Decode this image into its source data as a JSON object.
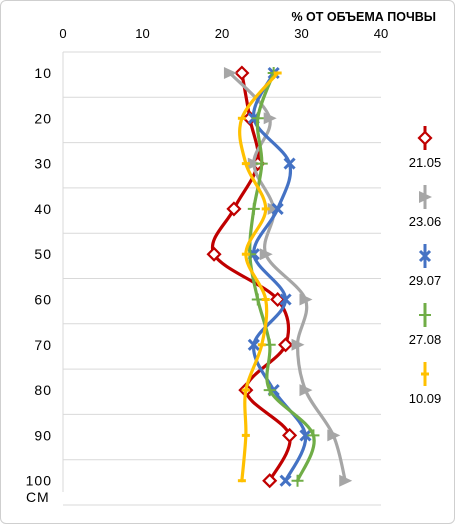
{
  "chart_data": {
    "type": "line",
    "xlabel": "% ОТ ОБЪЕМА ПОЧВЫ",
    "ylabel": "СМ",
    "xlim": [
      0,
      40
    ],
    "x_ticks": [
      "0",
      "10",
      "20",
      "30",
      "40"
    ],
    "y_ticks": [
      "10",
      "20",
      "30",
      "40",
      "50",
      "60",
      "70",
      "80",
      "90",
      "100"
    ],
    "depths": [
      10,
      20,
      30,
      40,
      50,
      60,
      70,
      80,
      90,
      100
    ],
    "legend_position": "right",
    "series": [
      {
        "name": "21.05",
        "color": "#c00000",
        "marker": "diamond",
        "values": [
          22.5,
          23.5,
          24.5,
          21.5,
          19,
          27,
          28,
          23,
          28.5,
          26
        ]
      },
      {
        "name": "23.06",
        "color": "#a6a6a6",
        "marker": "triangle",
        "values": [
          21,
          26,
          24,
          26.5,
          25.5,
          30.5,
          29.5,
          30.5,
          34,
          35.5
        ]
      },
      {
        "name": "29.07",
        "color": "#4472c4",
        "marker": "x",
        "values": [
          26.5,
          24,
          28.5,
          27,
          24,
          28,
          24,
          26.5,
          30.5,
          28
        ]
      },
      {
        "name": "27.08",
        "color": "#70ad47",
        "marker": "plus",
        "values": [
          26.5,
          24.5,
          25,
          24,
          23.5,
          24.5,
          26,
          26,
          31.5,
          29.5
        ]
      },
      {
        "name": "10.09",
        "color": "#ffc000",
        "marker": "dash",
        "values": [
          27,
          22.5,
          23,
          25.5,
          23,
          25.5,
          25,
          23,
          23,
          22.5
        ]
      }
    ]
  }
}
